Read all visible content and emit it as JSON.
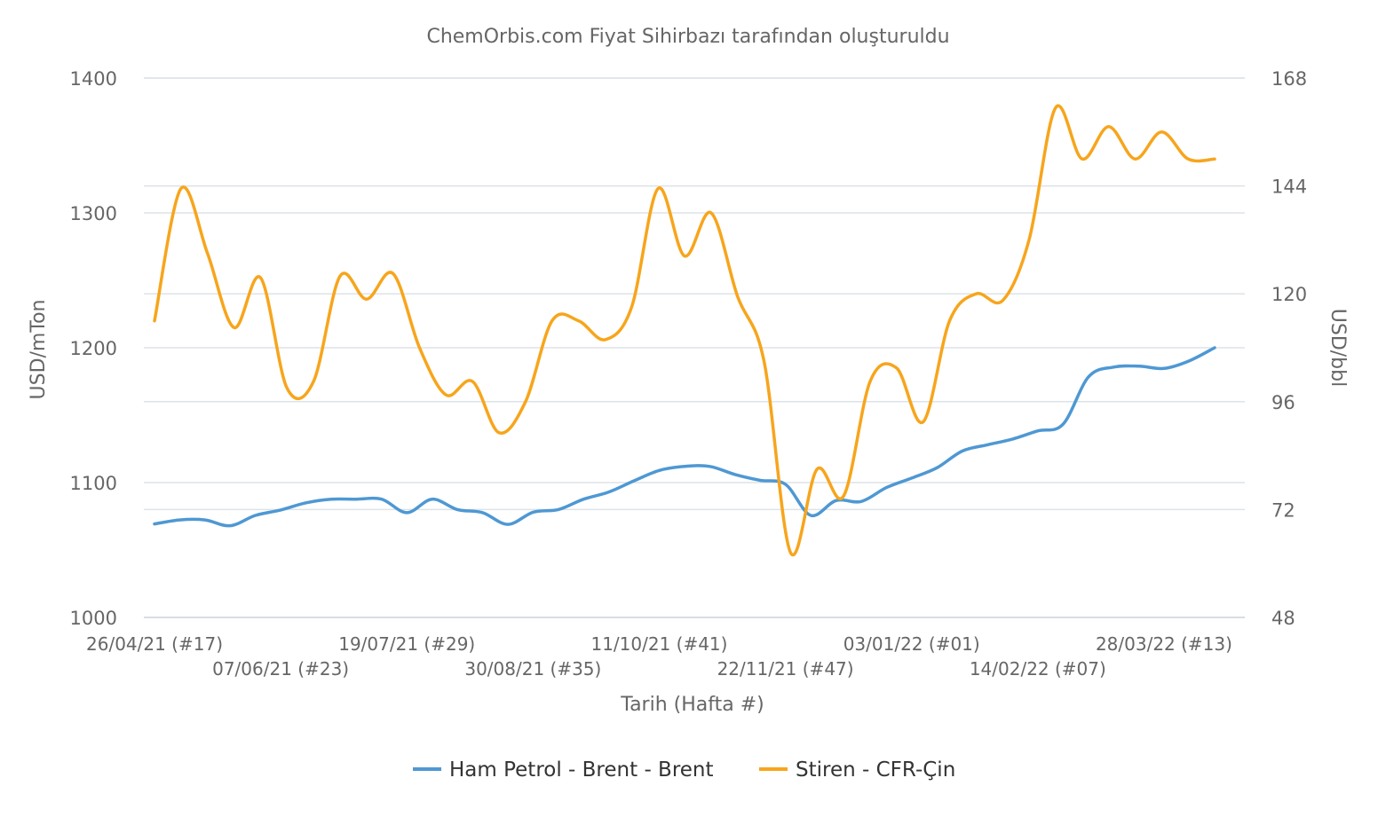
{
  "chart_data": {
    "type": "line",
    "title": "ChemOrbis.com Fiyat Sihirbazı tarafından oluşturuldu",
    "xlabel": "Tarih (Hafta #)",
    "ylabel_left": "USD/mTon",
    "ylabel_right": "USD/bbl",
    "ylim_left": [
      1000,
      1400
    ],
    "ylim_right": [
      48,
      168
    ],
    "yticks_left": [
      1000,
      1100,
      1200,
      1300,
      1400
    ],
    "yticks_right": [
      48,
      72,
      96,
      120,
      144,
      168
    ],
    "x_tick_labels": [
      {
        "index": 0,
        "label": "26/04/21 (#17)"
      },
      {
        "index": 6,
        "label": "07/06/21 (#23)"
      },
      {
        "index": 12,
        "label": "19/07/21 (#29)"
      },
      {
        "index": 18,
        "label": "30/08/21 (#35)"
      },
      {
        "index": 24,
        "label": "11/10/21 (#41)"
      },
      {
        "index": 30,
        "label": "22/11/21 (#47)"
      },
      {
        "index": 36,
        "label": "03/01/22 (#01)"
      },
      {
        "index": 42,
        "label": "14/02/22 (#07)"
      },
      {
        "index": 48,
        "label": "28/03/22 (#13)"
      }
    ],
    "grid": true,
    "legend_position": "bottom",
    "series": [
      {
        "name": "Ham Petrol - Brent - Brent",
        "axis": "right",
        "color": "#4e98d3",
        "values": [
          68.8,
          69.7,
          69.7,
          68.4,
          70.7,
          71.9,
          73.5,
          74.3,
          74.3,
          74.3,
          71.3,
          74.3,
          72.0,
          71.3,
          68.7,
          71.4,
          72.0,
          74.3,
          75.9,
          78.4,
          80.7,
          81.6,
          81.6,
          79.8,
          78.5,
          77.6,
          70.7,
          74.0,
          73.8,
          76.9,
          79.0,
          81.3,
          85.0,
          86.4,
          87.7,
          89.5,
          91.0,
          101.5,
          103.7,
          103.9,
          103.4,
          105.1,
          108.0
        ]
      },
      {
        "name": "Stiren - CFR-Çin",
        "axis": "left",
        "color": "#f7a51c",
        "values": [
          1220,
          1318,
          1270,
          1215,
          1252,
          1170,
          1175,
          1253,
          1236,
          1255,
          1200,
          1165,
          1175,
          1137,
          1160,
          1220,
          1220,
          1206,
          1230,
          1318,
          1268,
          1300,
          1238,
          1190,
          1048,
          1110,
          1090,
          1175,
          1185,
          1145,
          1220,
          1240,
          1235,
          1280,
          1378,
          1340,
          1364,
          1340,
          1360,
          1340,
          1340
        ]
      }
    ]
  }
}
